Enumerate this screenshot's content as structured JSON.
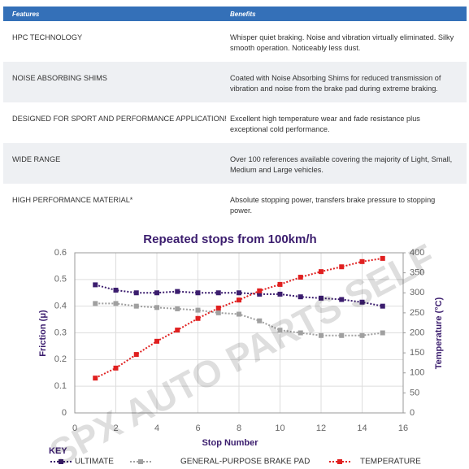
{
  "table": {
    "header": [
      "Features",
      "Benefits"
    ],
    "rows": [
      [
        "HPC TECHNOLOGY",
        "Whisper quiet braking. Noise and vibration virtually eliminated. Silky smooth operation. Noticeably less dust."
      ],
      [
        "NOISE ABSORBING SHIMS",
        "Coated with Noise Absorbing Shims for reduced transmission of vibration and noise from the brake pad during extreme braking."
      ],
      [
        "DESIGNED FOR SPORT AND PERFORMANCE APPLICATION!",
        "Excellent high temperature wear and fade resistance plus exceptional cold performance."
      ],
      [
        "WIDE RANGE",
        "Over 100 references available covering the majority of Light, Small, Medium and Large vehicles."
      ],
      [
        "HIGH PERFORMANCE MATERIAL*",
        "Absolute stopping power, transfers brake pressure to stopping power."
      ]
    ]
  },
  "watermark": "SPX AUTO PARTS SELF",
  "chart_data": {
    "type": "line",
    "title": "Repeated stops from 100km/h",
    "x_label": "Stop Number",
    "y_label": "Friction (μ)",
    "y2_label": "Temperature (°C)",
    "legend_title": "KEY",
    "x": [
      1,
      2,
      3,
      4,
      5,
      6,
      7,
      8,
      9,
      10,
      11,
      12,
      13,
      14,
      15
    ],
    "series": [
      {
        "name": "ULTIMATE",
        "color": "#3b1d6e",
        "values": [
          0.48,
          0.46,
          0.45,
          0.45,
          0.455,
          0.45,
          0.45,
          0.45,
          0.445,
          0.445,
          0.435,
          0.43,
          0.425,
          0.415,
          0.4
        ]
      },
      {
        "name": "GENERAL-PURPOSE BRAKE PAD",
        "color": "#a0a0a0",
        "values": [
          0.41,
          0.41,
          0.4,
          0.395,
          0.39,
          0.385,
          0.375,
          0.37,
          0.345,
          0.31,
          0.3,
          0.29,
          0.29,
          0.29,
          0.3
        ]
      },
      {
        "name": "TEMPERATURE",
        "color": "#e02020",
        "axis": "y2",
        "values": [
          87,
          112,
          146,
          179,
          207,
          236,
          262,
          282,
          305,
          321,
          339,
          353,
          365,
          378,
          386
        ]
      }
    ],
    "xlim": [
      0,
      16
    ],
    "xticks": [
      0,
      2,
      4,
      6,
      8,
      10,
      12,
      14,
      16
    ],
    "ylim": [
      0,
      0.6
    ],
    "yticks": [
      0,
      0.1,
      0.2,
      0.3,
      0.4,
      0.5,
      0.6
    ],
    "y2lim": [
      0,
      400
    ],
    "y2ticks": [
      0,
      50,
      100,
      150,
      200,
      250,
      300,
      350,
      400
    ],
    "grid": true
  }
}
